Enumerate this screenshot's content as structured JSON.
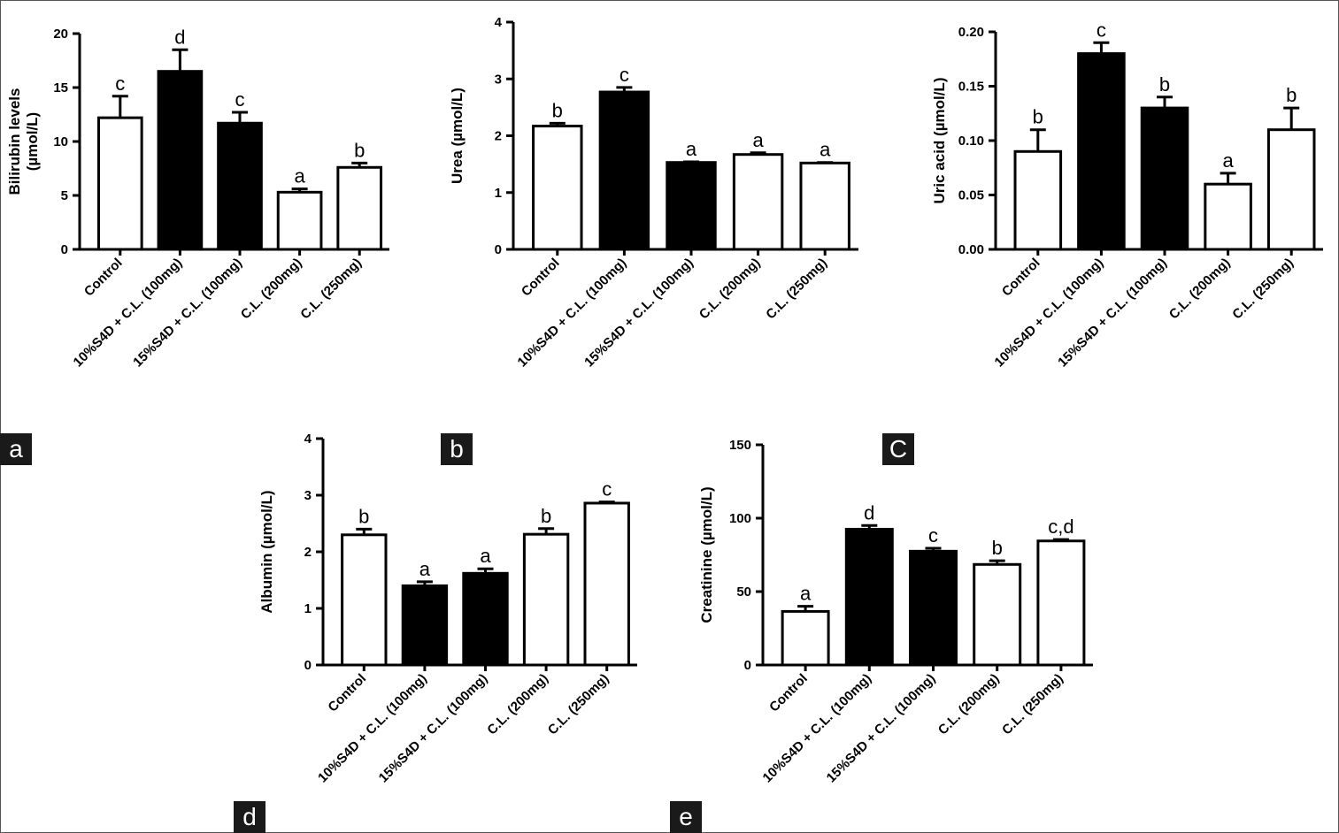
{
  "chart_data": [
    {
      "type": "bar",
      "panel_label": "a",
      "ylabel": "Bilirubin levels\n(µmol/L)",
      "ylim": [
        0,
        20
      ],
      "yticks": [
        "0",
        "5",
        "10",
        "15",
        "20"
      ],
      "categories": [
        "Control",
        "10%S4D + C.L. (100mg)",
        "15%S4D + C.L. (100mg)",
        "C.L. (200mg)",
        "C.L. (250mg)"
      ],
      "values": [
        12.2,
        16.5,
        11.7,
        5.3,
        7.6
      ],
      "errors": [
        2.0,
        2.0,
        1.0,
        0.3,
        0.4
      ],
      "significance": [
        "c",
        "d",
        "c",
        "a",
        "b"
      ],
      "bar_fill": [
        "white",
        "black",
        "black",
        "white",
        "white"
      ]
    },
    {
      "type": "bar",
      "panel_label": "b",
      "ylabel": "Urea (µmol/L)",
      "ylim": [
        0,
        4
      ],
      "yticks": [
        "0",
        "1",
        "2",
        "3",
        "4"
      ],
      "categories": [
        "Control",
        "10%S4D + C.L. (100mg)",
        "15%S4D + C.L. (100mg)",
        "C.L. (200mg)",
        "C.L. (250mg)"
      ],
      "values": [
        2.17,
        2.77,
        1.53,
        1.67,
        1.52
      ],
      "errors": [
        0.05,
        0.08,
        0.01,
        0.03,
        0.01
      ],
      "significance": [
        "b",
        "c",
        "a",
        "a",
        "a"
      ],
      "bar_fill": [
        "white",
        "black",
        "black",
        "white",
        "white"
      ]
    },
    {
      "type": "bar",
      "panel_label": "C",
      "ylabel": "Uric acid (µmol/L)",
      "ylim": [
        0,
        0.2
      ],
      "yticks": [
        "0.00",
        "0.05",
        "0.10",
        "0.15",
        "0.20"
      ],
      "categories": [
        "Control",
        "10%S4D + C.L. (100mg)",
        "15%S4D + C.L. (100mg)",
        "C.L. (200mg)",
        "C.L. (250mg)"
      ],
      "values": [
        0.09,
        0.18,
        0.13,
        0.06,
        0.11
      ],
      "errors": [
        0.02,
        0.01,
        0.01,
        0.01,
        0.02
      ],
      "significance": [
        "b",
        "c",
        "b",
        "a",
        "b"
      ],
      "bar_fill": [
        "white",
        "black",
        "black",
        "white",
        "white"
      ]
    },
    {
      "type": "bar",
      "panel_label": "d",
      "ylabel": "Albumin (µmol/L)",
      "ylim": [
        0,
        4
      ],
      "yticks": [
        "0",
        "1",
        "2",
        "3",
        "4"
      ],
      "categories": [
        "Control",
        "10%S4D + C.L. (100mg)",
        "15%S4D + C.L. (100mg)",
        "C.L. (200mg)",
        "C.L. (250mg)"
      ],
      "values": [
        2.3,
        1.4,
        1.62,
        2.31,
        2.86
      ],
      "errors": [
        0.1,
        0.07,
        0.08,
        0.1,
        0.02
      ],
      "significance": [
        "b",
        "a",
        "a",
        "b",
        "c"
      ],
      "bar_fill": [
        "white",
        "black",
        "black",
        "white",
        "white"
      ]
    },
    {
      "type": "bar",
      "panel_label": "e",
      "ylabel": "Creatinine (µmol/L)",
      "ylim": [
        0,
        150
      ],
      "yticks": [
        "0",
        "50",
        "100",
        "150"
      ],
      "categories": [
        "Control",
        "10%S4D + C.L. (100mg)",
        "15%S4D + C.L. (100mg)",
        "C.L. (200mg)",
        "C.L. (250mg)"
      ],
      "values": [
        36.5,
        92.5,
        77.5,
        68.5,
        84.5
      ],
      "errors": [
        3.5,
        2.5,
        2.0,
        2.5,
        1.0
      ],
      "significance": [
        "a",
        "d",
        "c",
        "b",
        "c,d"
      ],
      "bar_fill": [
        "white",
        "black",
        "black",
        "white",
        "white"
      ]
    }
  ]
}
